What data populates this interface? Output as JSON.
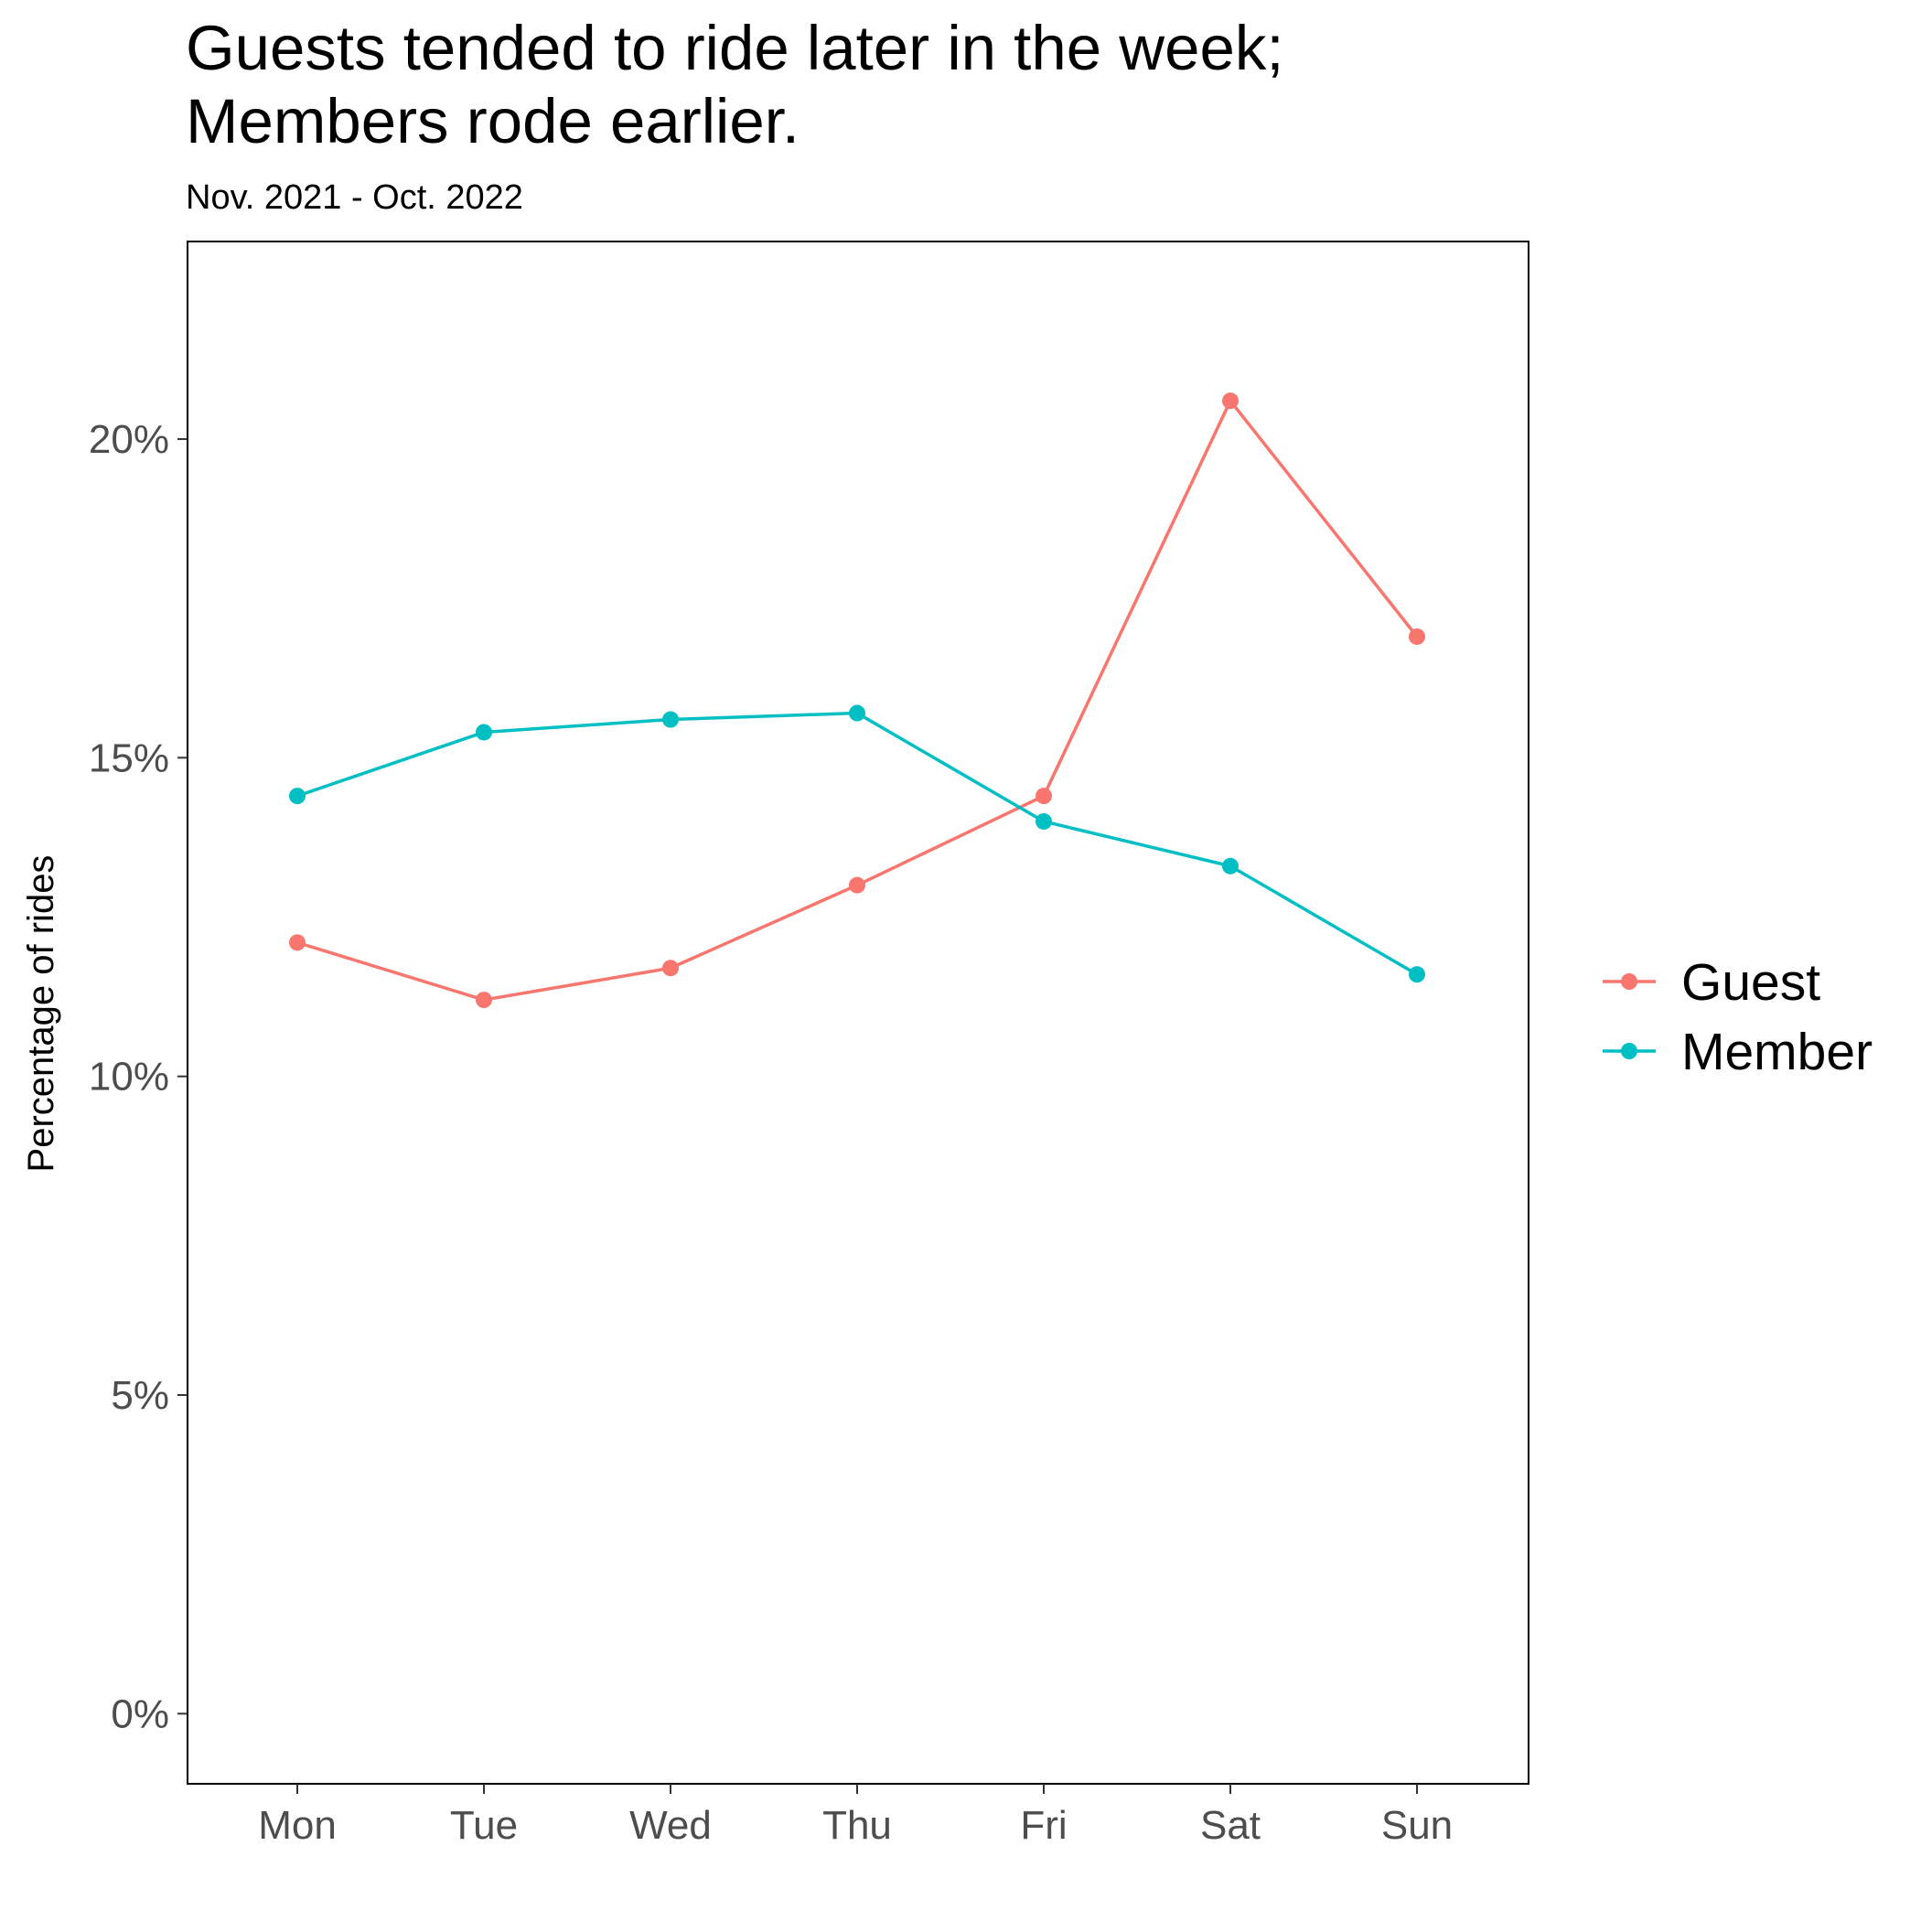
{
  "chart_data": {
    "type": "line",
    "title_lines": [
      "Guests tended to ride later in the week;",
      "Members rode earlier."
    ],
    "subtitle": "Nov. 2021 - Oct. 2022",
    "xlabel": "",
    "ylabel": "Percentage of rides",
    "categories": [
      "Mon",
      "Tue",
      "Wed",
      "Thu",
      "Fri",
      "Sat",
      "Sun"
    ],
    "ylim": [
      -1.1,
      23.1
    ],
    "yticks": [
      0,
      5,
      10,
      15,
      20
    ],
    "ytick_labels": [
      "0%",
      "5%",
      "10%",
      "15%",
      "20%"
    ],
    "grid": false,
    "legend_position": "right",
    "series": [
      {
        "name": "Guest",
        "color": "#F8766D",
        "values": [
          12.1,
          11.2,
          11.7,
          13.0,
          14.4,
          20.6,
          16.9
        ]
      },
      {
        "name": "Member",
        "color": "#00BFC4",
        "values": [
          14.4,
          15.4,
          15.6,
          15.7,
          14.0,
          13.3,
          11.6
        ]
      }
    ]
  }
}
